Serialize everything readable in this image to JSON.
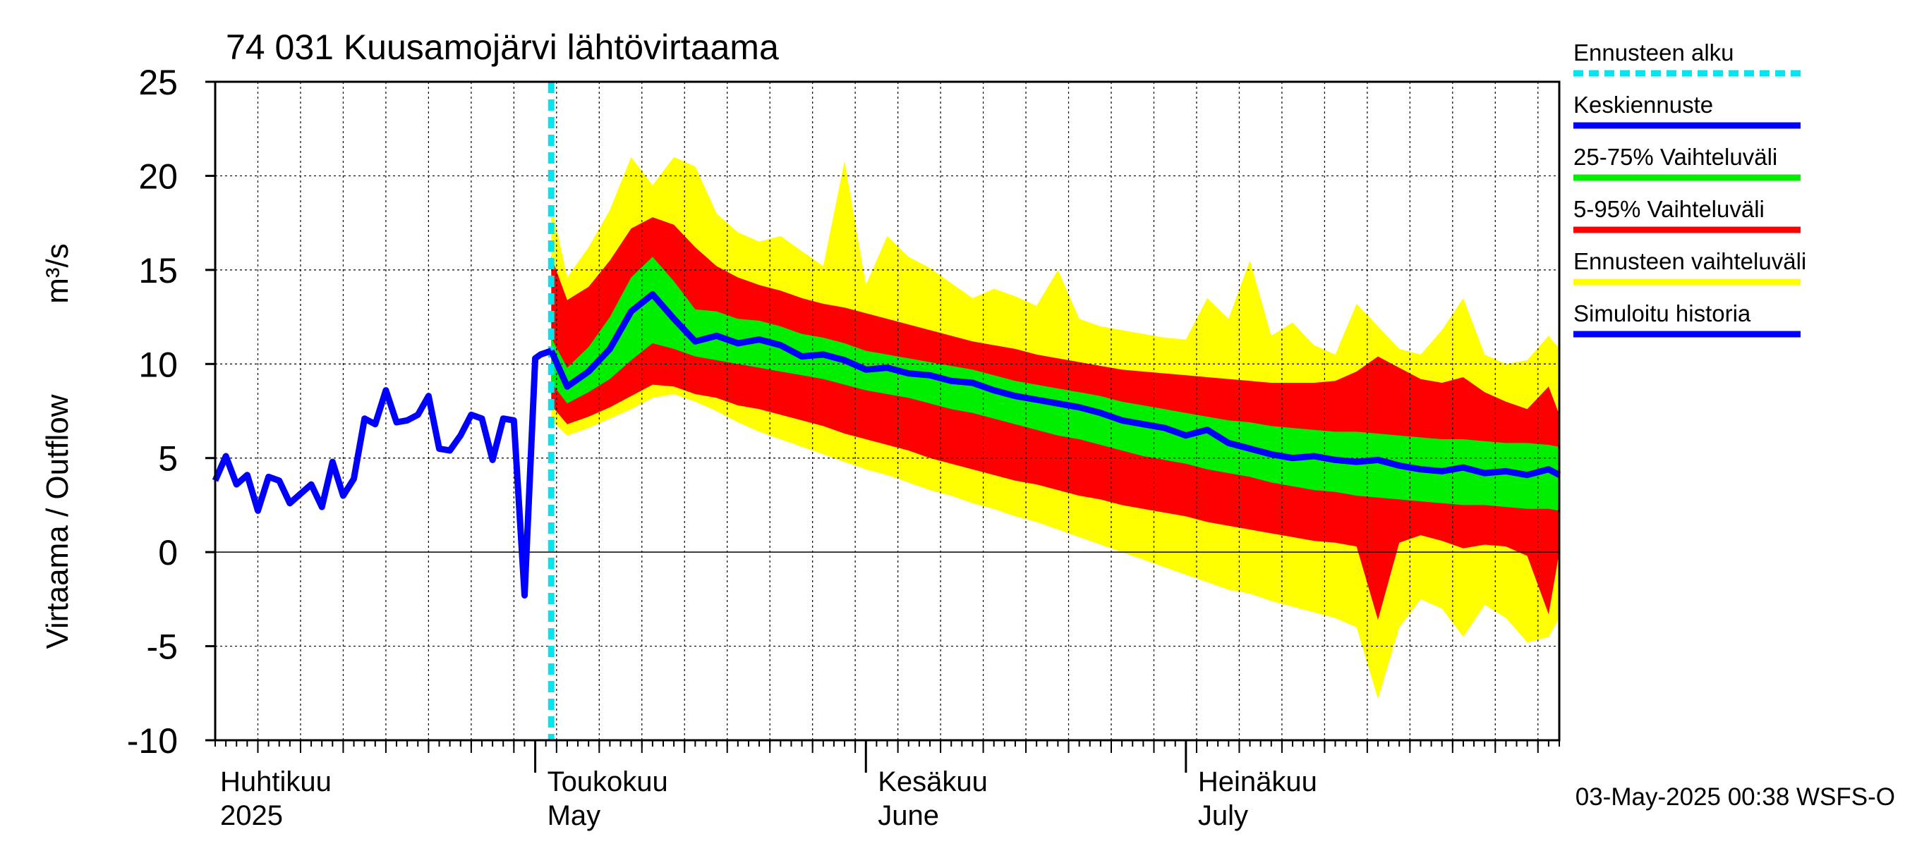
{
  "chart_data": {
    "type": "area",
    "title": "74 031 Kuusamojärvi lähtövirtaama",
    "ylabel_fi": "Virtaama / Outflow",
    "ylabel_unit": "m³/s",
    "ylim": [
      -10,
      25
    ],
    "y_ticks": [
      25,
      20,
      15,
      10,
      5,
      0,
      -5,
      -10
    ],
    "x_range_days": [
      0,
      126
    ],
    "forecast_start_day": 31.5,
    "month_labels": [
      {
        "day": 0,
        "fi": "Huhtikuu",
        "en": "2025"
      },
      {
        "day": 30,
        "fi": "Toukokuu",
        "en": "May"
      },
      {
        "day": 61,
        "fi": "Kesäkuu",
        "en": "June"
      },
      {
        "day": 91,
        "fi": "Heinäkuu",
        "en": "July"
      }
    ],
    "legend": [
      {
        "label": "Ennusteen alku",
        "color": "#00e5ee",
        "style": "dashed"
      },
      {
        "label": "Keskiennuste",
        "color": "#0000ff",
        "style": "solid"
      },
      {
        "label": "25-75% Vaihteluväli",
        "color": "#00ee00",
        "style": "solid"
      },
      {
        "label": "5-95% Vaihteluväli",
        "color": "#ff0000",
        "style": "solid"
      },
      {
        "label": "Ennusteen vaihteluväli",
        "color": "#ffff00",
        "style": "solid"
      },
      {
        "label": "Simuloitu historia",
        "color": "#0000ff",
        "style": "solid"
      }
    ],
    "colors": {
      "history": "#0000ff",
      "median": "#0000ff",
      "band_25_75": "#00ee00",
      "band_5_95": "#ff0000",
      "band_full": "#ffff00",
      "forecast_start": "#00e5ee"
    },
    "history": {
      "x": [
        0,
        1,
        2,
        3,
        4,
        5,
        6,
        7,
        8,
        9,
        10,
        11,
        12,
        13,
        14,
        15,
        16,
        17,
        18,
        19,
        20,
        21,
        22,
        23,
        24,
        25,
        26,
        27,
        28,
        29,
        30,
        30.5,
        31,
        31.5
      ],
      "y": [
        3.8,
        5.1,
        3.6,
        4.1,
        2.2,
        4.0,
        3.8,
        2.6,
        3.1,
        3.6,
        2.4,
        4.8,
        3.0,
        3.9,
        7.1,
        6.8,
        8.6,
        6.9,
        7.0,
        7.3,
        8.3,
        5.5,
        5.4,
        6.2,
        7.3,
        7.1,
        4.9,
        7.1,
        7.0,
        -2.3,
        10.3,
        10.5,
        10.6,
        10.7
      ]
    },
    "forecast": {
      "x": [
        31.5,
        33,
        35,
        37,
        39,
        41,
        43,
        45,
        47,
        49,
        51,
        53,
        55,
        57,
        59,
        61,
        63,
        65,
        67,
        69,
        71,
        73,
        75,
        77,
        79,
        81,
        83,
        85,
        87,
        89,
        91,
        93,
        95,
        97,
        99,
        101,
        103,
        105,
        107,
        109,
        111,
        113,
        115,
        117,
        119,
        121,
        123,
        125,
        126
      ],
      "median": [
        10.7,
        8.8,
        9.6,
        10.8,
        12.8,
        13.7,
        12.4,
        11.2,
        11.5,
        11.1,
        11.3,
        11.0,
        10.4,
        10.5,
        10.2,
        9.7,
        9.8,
        9.5,
        9.4,
        9.1,
        9.0,
        8.6,
        8.3,
        8.1,
        7.9,
        7.7,
        7.4,
        7.0,
        6.8,
        6.6,
        6.2,
        6.5,
        5.8,
        5.5,
        5.2,
        5.0,
        5.1,
        4.9,
        4.8,
        4.9,
        4.6,
        4.4,
        4.3,
        4.5,
        4.2,
        4.3,
        4.1,
        4.4,
        4.1
      ],
      "p25": [
        9.0,
        7.9,
        8.5,
        9.2,
        10.2,
        11.1,
        10.8,
        10.4,
        10.2,
        10.0,
        9.8,
        9.6,
        9.4,
        9.2,
        8.9,
        8.6,
        8.4,
        8.2,
        7.9,
        7.6,
        7.4,
        7.1,
        6.8,
        6.5,
        6.2,
        6.0,
        5.7,
        5.4,
        5.1,
        4.9,
        4.7,
        4.4,
        4.2,
        4.0,
        3.7,
        3.5,
        3.3,
        3.2,
        3.0,
        2.9,
        2.8,
        2.7,
        2.6,
        2.5,
        2.5,
        2.4,
        2.3,
        2.3,
        2.2
      ],
      "p75": [
        11.4,
        9.8,
        10.9,
        12.5,
        14.6,
        15.7,
        14.4,
        12.9,
        12.8,
        12.4,
        12.3,
        12.0,
        11.6,
        11.4,
        11.1,
        10.7,
        10.5,
        10.3,
        10.1,
        9.9,
        9.7,
        9.4,
        9.1,
        8.9,
        8.7,
        8.5,
        8.3,
        8.0,
        7.8,
        7.6,
        7.4,
        7.2,
        7.0,
        6.9,
        6.7,
        6.6,
        6.5,
        6.4,
        6.4,
        6.3,
        6.2,
        6.1,
        6.0,
        6.0,
        5.9,
        5.8,
        5.8,
        5.7,
        5.6
      ],
      "p05": [
        7.8,
        6.8,
        7.2,
        7.7,
        8.3,
        8.9,
        8.8,
        8.4,
        8.2,
        7.8,
        7.6,
        7.3,
        7.0,
        6.7,
        6.3,
        6.0,
        5.7,
        5.4,
        5.0,
        4.7,
        4.4,
        4.1,
        3.8,
        3.6,
        3.3,
        3.0,
        2.8,
        2.5,
        2.3,
        2.1,
        1.9,
        1.6,
        1.4,
        1.2,
        1.0,
        0.8,
        0.6,
        0.5,
        0.3,
        -3.6,
        0.5,
        0.9,
        0.6,
        0.2,
        0.4,
        0.3,
        -0.2,
        -3.3,
        0.0
      ],
      "p95": [
        15.7,
        13.4,
        14.1,
        15.5,
        17.2,
        17.8,
        17.4,
        16.2,
        15.2,
        14.6,
        14.2,
        13.9,
        13.5,
        13.2,
        13.0,
        12.7,
        12.4,
        12.1,
        11.8,
        11.5,
        11.2,
        11.0,
        10.8,
        10.5,
        10.3,
        10.1,
        9.9,
        9.7,
        9.6,
        9.5,
        9.4,
        9.3,
        9.2,
        9.1,
        9.0,
        9.0,
        9.0,
        9.1,
        9.6,
        10.4,
        9.8,
        9.2,
        9.0,
        9.3,
        8.5,
        8.0,
        7.6,
        8.8,
        7.3
      ],
      "min": [
        7.0,
        6.2,
        6.6,
        7.1,
        7.6,
        8.2,
        8.4,
        8.0,
        7.5,
        6.9,
        6.4,
        6.0,
        5.6,
        5.2,
        4.8,
        4.4,
        4.1,
        3.7,
        3.3,
        3.0,
        2.6,
        2.3,
        1.9,
        1.6,
        1.2,
        0.8,
        0.4,
        0.0,
        -0.4,
        -0.8,
        -1.2,
        -1.6,
        -2.0,
        -2.2,
        -2.6,
        -2.9,
        -3.2,
        -3.5,
        -4.0,
        -7.8,
        -4.0,
        -2.5,
        -3.0,
        -4.5,
        -2.8,
        -3.5,
        -4.8,
        -4.5,
        -3.5
      ],
      "max": [
        18.5,
        14.6,
        16.2,
        18.2,
        21.0,
        19.5,
        21.0,
        20.5,
        18.0,
        17.0,
        16.5,
        16.8,
        16.0,
        15.2,
        20.8,
        14.2,
        16.8,
        15.7,
        15.1,
        14.3,
        13.5,
        14.0,
        13.6,
        13.1,
        15.0,
        12.4,
        12.0,
        11.8,
        11.6,
        11.4,
        11.3,
        13.5,
        12.4,
        15.5,
        11.5,
        12.2,
        11.0,
        10.5,
        13.2,
        12.0,
        10.8,
        10.5,
        11.8,
        13.5,
        10.5,
        10.0,
        10.2,
        11.5,
        10.8
      ]
    },
    "grid": true,
    "legend_placement": "right",
    "timestamp": "03-May-2025 00:38 WSFS-O"
  }
}
